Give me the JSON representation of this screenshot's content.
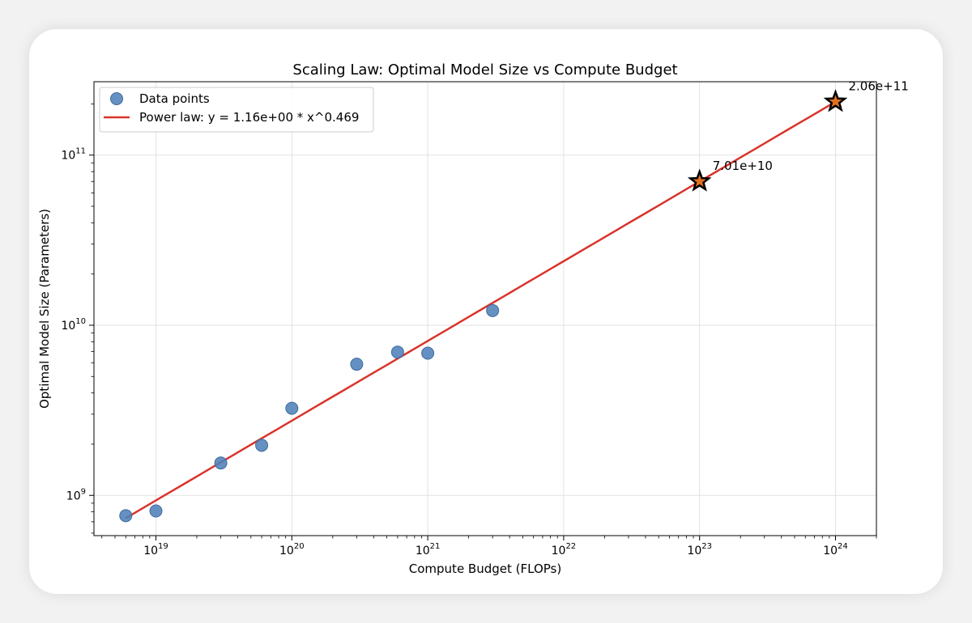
{
  "chart_data": {
    "type": "scatter",
    "title": "Scaling Law: Optimal Model Size vs Compute Budget",
    "xlabel": "Compute Budget (FLOPs)",
    "ylabel": "Optimal Model Size (Parameters)",
    "x_scale": "log",
    "y_scale": "log",
    "xlim": [
      3.5e+18,
      2e+24
    ],
    "ylim": [
      580000000.0,
      270000000000.0
    ],
    "grid": true,
    "legend_position": "top-left",
    "x_ticks": [
      {
        "value": 1e+19,
        "base": "10",
        "exp": "19"
      },
      {
        "value": 1e+20,
        "base": "10",
        "exp": "20"
      },
      {
        "value": 1e+21,
        "base": "10",
        "exp": "21"
      },
      {
        "value": 1e+22,
        "base": "10",
        "exp": "22"
      },
      {
        "value": 1e+23,
        "base": "10",
        "exp": "23"
      },
      {
        "value": 1e+24,
        "base": "10",
        "exp": "24"
      }
    ],
    "y_ticks": [
      {
        "value": 1000000000.0,
        "base": "10",
        "exp": "9"
      },
      {
        "value": 10000000000.0,
        "base": "10",
        "exp": "10"
      },
      {
        "value": 100000000000.0,
        "base": "10",
        "exp": "11"
      }
    ],
    "series": [
      {
        "name": "Data points",
        "kind": "scatter",
        "color": "#4f81b9",
        "points": [
          {
            "x": 6e+18,
            "y": 760000000.0
          },
          {
            "x": 1e+19,
            "y": 810000000.0
          },
          {
            "x": 3e+19,
            "y": 1550000000.0
          },
          {
            "x": 6e+19,
            "y": 1970000000.0
          },
          {
            "x": 1e+20,
            "y": 3250000000.0
          },
          {
            "x": 3e+20,
            "y": 5900000000.0
          },
          {
            "x": 6e+20,
            "y": 6950000000.0
          },
          {
            "x": 1e+21,
            "y": 6850000000.0
          },
          {
            "x": 3e+21,
            "y": 12200000000.0
          }
        ]
      },
      {
        "name": "Power law: y = 1.16e+00 * x^0.469",
        "kind": "line",
        "color": "#d9342b",
        "x_range": [
          6e+18,
          1e+24
        ],
        "coefficient": 1.16,
        "exponent": 0.469
      }
    ],
    "predictions": [
      {
        "x": 1e+23,
        "y": 70100000000.0,
        "label": "7.01e+10"
      },
      {
        "x": 1e+24,
        "y": 206000000000.0,
        "label": "2.06e+11"
      }
    ]
  }
}
